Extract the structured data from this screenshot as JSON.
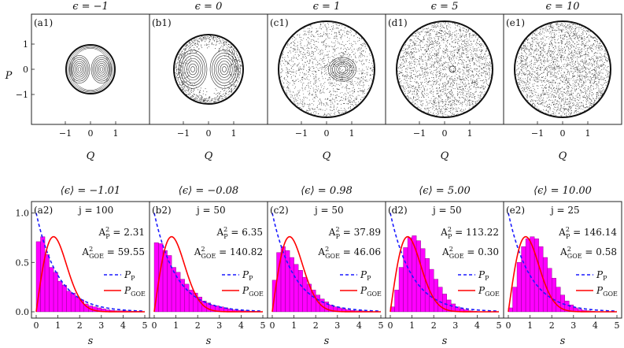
{
  "chart_data": {
    "type": "figure",
    "top_row": {
      "xlabel": "Q",
      "ylabel": "P",
      "xticks": [
        "-1",
        "0",
        "1"
      ],
      "yticks": [
        "1",
        "0",
        "-1"
      ],
      "panels": [
        {
          "label": "(a1)",
          "title": "ϵ = −1",
          "regime": "regular",
          "show_yticks": true
        },
        {
          "label": "(b1)",
          "title": "ϵ = 0",
          "regime": "mostly-regular",
          "show_yticks": false
        },
        {
          "label": "(c1)",
          "title": "ϵ = 1",
          "regime": "mixed",
          "show_yticks": false
        },
        {
          "label": "(d1)",
          "title": "ϵ = 5",
          "regime": "mostly-chaotic",
          "show_yticks": false
        },
        {
          "label": "(e1)",
          "title": "ϵ = 10",
          "regime": "chaotic",
          "show_yticks": false
        }
      ]
    },
    "bottom_row": {
      "type": "bar",
      "xlabel": "s",
      "xlim": [
        0,
        5
      ],
      "ylim": [
        0,
        1.1
      ],
      "xticks": [
        "0",
        "1",
        "2",
        "3",
        "4",
        "5"
      ],
      "yticks": [
        "1.0",
        "0.5",
        "0.0"
      ],
      "legend": {
        "poisson": "P",
        "poisson_sub": "P",
        "goe": "P",
        "goe_sub": "GOE"
      },
      "bin_width": 0.2,
      "panels": [
        {
          "label": "(a2)",
          "title": "⟨ϵ⟩ = −1.01",
          "j": "j = 100",
          "AP": "A",
          "AP_sup": "2",
          "AP_sub": "P",
          "AP_val": " = 2.31",
          "AG_val": " = 59.55",
          "values": [
            0.71,
            0.76,
            0.58,
            0.45,
            0.4,
            0.31,
            0.27,
            0.21,
            0.19,
            0.15,
            0.12,
            0.08,
            0.06,
            0.05,
            0.04,
            0.03,
            0.02,
            0.015,
            0.01,
            0.01,
            0.01,
            0.005,
            0.005,
            0.005,
            0.0
          ]
        },
        {
          "label": "(b2)",
          "title": "⟨ϵ⟩ = −0.08",
          "j": "j = 50",
          "AP": "A",
          "AP_sup": "2",
          "AP_sub": "P",
          "AP_val": " = 6.35",
          "AG_val": " = 140.82",
          "values": [
            0.7,
            0.69,
            0.62,
            0.57,
            0.45,
            0.4,
            0.33,
            0.28,
            0.22,
            0.19,
            0.15,
            0.11,
            0.09,
            0.07,
            0.06,
            0.05,
            0.04,
            0.03,
            0.02,
            0.015,
            0.01,
            0.01,
            0.005,
            0.005,
            0.0
          ]
        },
        {
          "label": "(c2)",
          "title": "⟨ϵ⟩ = 0.98",
          "j": "j = 50",
          "AP": "A",
          "AP_sup": "2",
          "AP_sub": "P",
          "AP_val": " = 37.89",
          "AG_val": " = 46.06",
          "values": [
            0.32,
            0.6,
            0.66,
            0.62,
            0.55,
            0.48,
            0.42,
            0.35,
            0.28,
            0.22,
            0.17,
            0.13,
            0.1,
            0.07,
            0.05,
            0.04,
            0.03,
            0.02,
            0.015,
            0.01,
            0.01,
            0.005,
            0.005,
            0.0,
            0.0
          ]
        },
        {
          "label": "(d2)",
          "title": "⟨ϵ⟩ = 5.00",
          "j": "j = 50",
          "AP": "A",
          "AP_sup": "2",
          "AP_sub": "P",
          "AP_val": " = 113.22",
          "AG_val": " = 0.30",
          "values": [
            0.05,
            0.22,
            0.45,
            0.65,
            0.75,
            0.77,
            0.72,
            0.64,
            0.54,
            0.43,
            0.33,
            0.25,
            0.18,
            0.12,
            0.08,
            0.05,
            0.03,
            0.02,
            0.01,
            0.005,
            0.0,
            0.0,
            0.0,
            0.0,
            0.0
          ]
        },
        {
          "label": "(e2)",
          "title": "⟨ϵ⟩ = 10.00",
          "j": "j = 25",
          "AP": "A",
          "AP_sup": "2",
          "AP_sub": "P",
          "AP_val": " = 146.14",
          "AG_val": " = 0.58",
          "values": [
            0.04,
            0.25,
            0.5,
            0.66,
            0.74,
            0.76,
            0.74,
            0.66,
            0.55,
            0.44,
            0.34,
            0.25,
            0.17,
            0.11,
            0.07,
            0.04,
            0.025,
            0.015,
            0.01,
            0.005,
            0.0,
            0.0,
            0.0,
            0.0,
            0.0
          ]
        }
      ]
    },
    "colors": {
      "bar": "#ff00ff",
      "bar_edge": "#7a007a",
      "poisson": "#1a1aff",
      "goe": "#ff0000",
      "axis": "#222222",
      "orbit": "#333333"
    }
  }
}
